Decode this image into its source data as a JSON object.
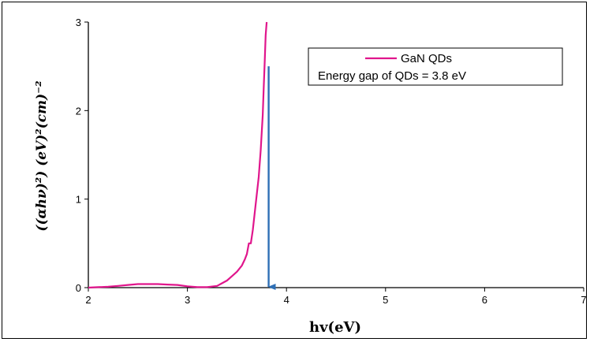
{
  "chart_data": {
    "type": "line",
    "title": "",
    "xlabel": "hv(eV)",
    "ylabel": "((αhν)²) (eV)²(cm)⁻²",
    "xlim": [
      2,
      7
    ],
    "ylim": [
      0,
      3
    ],
    "x_ticks": [
      "2",
      "3",
      "4",
      "5",
      "6",
      "7"
    ],
    "y_ticks": [
      "0",
      "1",
      "2",
      "3"
    ],
    "grid": false,
    "legend_position": "top-right",
    "series": [
      {
        "name": "GaN QDs",
        "color": "#e0168c",
        "x": [
          2.0,
          2.1,
          2.2,
          2.3,
          2.4,
          2.5,
          2.6,
          2.7,
          2.8,
          2.9,
          3.0,
          3.1,
          3.2,
          3.3,
          3.35,
          3.4,
          3.45,
          3.5,
          3.55,
          3.58,
          3.6,
          3.62,
          3.64,
          3.66,
          3.68,
          3.7,
          3.72,
          3.74,
          3.76,
          3.77,
          3.78,
          3.79,
          3.8
        ],
        "y": [
          0.0,
          0.005,
          0.01,
          0.02,
          0.03,
          0.04,
          0.04,
          0.04,
          0.035,
          0.03,
          0.015,
          0.005,
          0.005,
          0.02,
          0.05,
          0.08,
          0.13,
          0.18,
          0.25,
          0.32,
          0.38,
          0.5,
          0.5,
          0.65,
          0.85,
          1.05,
          1.25,
          1.55,
          1.95,
          2.25,
          2.55,
          2.85,
          3.0
        ]
      }
    ],
    "annotation": {
      "label": "Energy gap of QDs = 3.8 eV",
      "x": 3.82,
      "y_from": 2.5,
      "y_to": 0.0,
      "color": "#2e6fb5"
    }
  }
}
